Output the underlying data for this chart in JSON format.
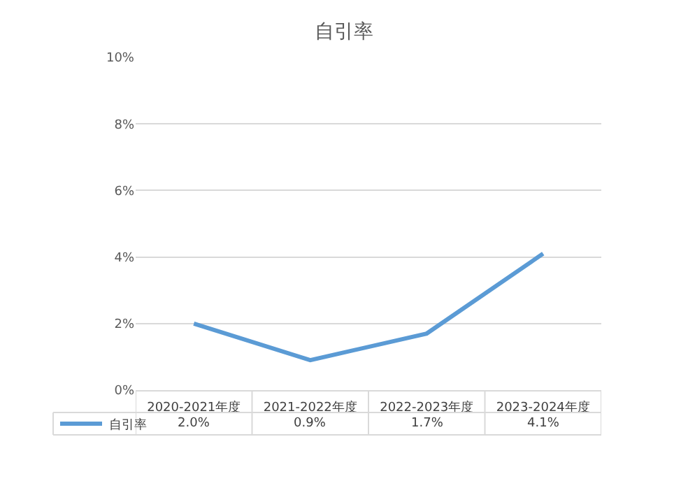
{
  "chart_data": {
    "type": "line",
    "title": "自引率",
    "categories": [
      "2020-2021年度",
      "2021-2022年度",
      "2022-2023年度",
      "2023-2024年度"
    ],
    "series": [
      {
        "name": "自引率",
        "color": "#5b9bd5",
        "values": [
          2.0,
          0.9,
          1.7,
          4.1
        ],
        "value_labels": [
          "2.0%",
          "0.9%",
          "1.7%",
          "4.1%"
        ]
      }
    ],
    "ylim": [
      0,
      10
    ],
    "yticks": [
      {
        "value": 0,
        "label": "0%"
      },
      {
        "value": 2,
        "label": "2%"
      },
      {
        "value": 4,
        "label": "4%"
      },
      {
        "value": 6,
        "label": "6%"
      },
      {
        "value": 8,
        "label": "8%"
      },
      {
        "value": 10,
        "label": "10%"
      }
    ],
    "grid": "y",
    "legend": "bottom",
    "marker": "none",
    "line_style": "solid"
  }
}
